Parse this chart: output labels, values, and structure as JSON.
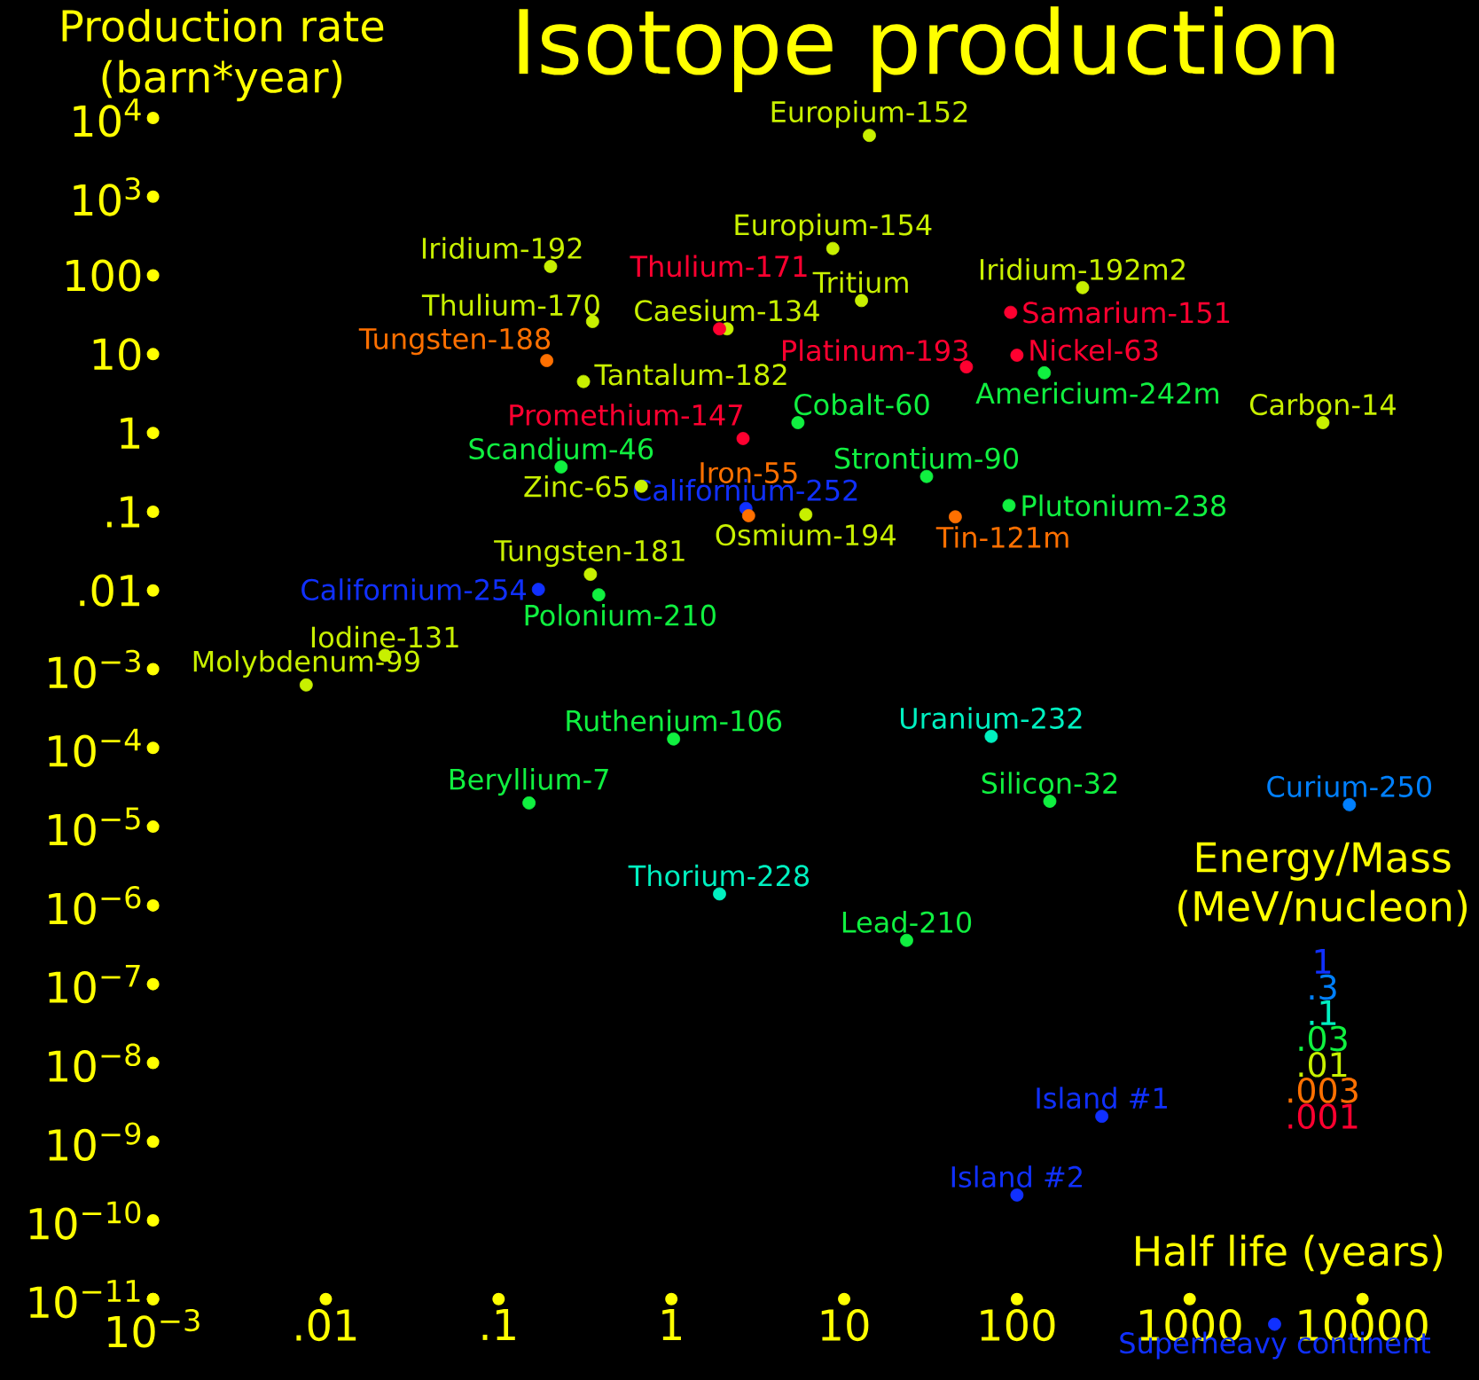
{
  "chart_data": {
    "type": "scatter",
    "title": "Isotope production",
    "xlabel": "Half life (years)",
    "ylabel": "Production rate (barn*year)",
    "legend_title": "Energy/Mass (MeV/nucleon)",
    "log": "xy",
    "marker": "circle",
    "legend": "bottom right",
    "xlim": [
      0.001,
      10000
    ],
    "ylim": [
      4.5e-12,
      10000
    ],
    "xticks": [
      {
        "value": 0.001,
        "label": "10$^{−3}$"
      },
      {
        "value": 0.01,
        "label": ".01"
      },
      {
        "value": 0.1,
        "label": ".1"
      },
      1,
      10,
      100,
      1000,
      10000
    ],
    "yticks": [
      {
        "value": 1e-11,
        "label": "10$^{−11}$"
      },
      {
        "value": 1e-10,
        "label": "10$^{−10}$"
      },
      {
        "value": 1e-09,
        "label": "10$^{−9}$"
      },
      {
        "value": 1e-08,
        "label": "10$^{−8}$"
      },
      {
        "value": 1e-07,
        "label": "10$^{−7}$"
      },
      {
        "value": 1e-06,
        "label": "10$^{−6}$"
      },
      {
        "value": 1e-05,
        "label": "10$^{−5}$"
      },
      {
        "value": 0.0001,
        "label": "10$^{−4}$"
      },
      {
        "value": 0.001,
        "label": "10$^{−3}$"
      },
      {
        "value": 0.01,
        "label": ".01"
      },
      {
        "value": 0.1,
        "label": ".1"
      },
      1,
      10,
      100,
      {
        "value": 1000,
        "label": "10$^{3}$"
      },
      {
        "value": 10000,
        "label": "10$^{4}$"
      }
    ],
    "series": [
      {
        "name": "1",
        "color": "#1030ff",
        "x": [
          0.17,
          2.7,
          310,
          100,
          3100
        ],
        "values": [
          0.0103,
          0.11,
          2.1e-09,
          2.1e-10,
          4.8e-12
        ]
      },
      {
        "name": ".3",
        "color": "#0080ff",
        "x": [
          8400
        ],
        "values": [
          1.9e-05
        ]
      },
      {
        "name": ".1",
        "color": "#00f0c0",
        "x": [
          71,
          1.9
        ],
        "values": [
          0.00014,
          1.4e-06
        ]
      },
      {
        "name": ".03",
        "color": "#10f040",
        "x": [
          0.23,
          5.4,
          144,
          30,
          90,
          0.38,
          1.03,
          0.15,
          155,
          23
        ],
        "values": [
          0.37,
          1.35,
          5.8,
          0.28,
          0.12,
          0.0088,
          0.00013,
          2e-05,
          2.1e-05,
          3.6e-07
        ]
      },
      {
        "name": ".01",
        "color": "#c8f000",
        "x": [
          14,
          8.6,
          2.1,
          0.31,
          0.67,
          6,
          0.34,
          0.0077,
          0.022,
          5900,
          0.2,
          240,
          12.6,
          0.35
        ],
        "values": [
          6000,
          220,
          21,
          4.5,
          0.21,
          0.092,
          0.016,
          0.00063,
          0.0015,
          1.35,
          130,
          70,
          48,
          26
        ]
      },
      {
        "name": ".003",
        "color": "#ff7000",
        "x": [
          2.8,
          44,
          0.19
        ],
        "values": [
          0.089,
          0.086,
          8.3
        ]
      },
      {
        "name": ".001",
        "color": "#ff0030",
        "x": [
          1.9,
          2.6,
          92,
          100,
          51
        ],
        "values": [
          21,
          0.85,
          34,
          9.7,
          6.9
        ]
      }
    ],
    "annotations": [
      {
        "text": "Californium-254",
        "x": 0.17,
        "y": 0.0103
      },
      {
        "text": "Californium-252",
        "x": 2.7,
        "y": 0.11
      },
      {
        "text": "Island #1",
        "x": 310,
        "y": 2.1e-09
      },
      {
        "text": "Island #2",
        "x": 100,
        "y": 2.1e-10
      },
      {
        "text": "Superheavy continent",
        "x": 3100,
        "y": 4.8e-12
      },
      {
        "text": "Curium-250",
        "x": 8400,
        "y": 1.9e-05
      },
      {
        "text": "Uranium-232",
        "x": 71,
        "y": 0.00014
      },
      {
        "text": "Thorium-228",
        "x": 1.9,
        "y": 1.4e-06
      },
      {
        "text": "Scandium-46",
        "x": 0.23,
        "y": 0.37
      },
      {
        "text": "Cobalt-60",
        "x": 5.4,
        "y": 1.35
      },
      {
        "text": "Americium-242m",
        "x": 144,
        "y": 5.8
      },
      {
        "text": "Strontium-90",
        "x": 30,
        "y": 0.28
      },
      {
        "text": "Plutonium-238",
        "x": 90,
        "y": 0.12
      },
      {
        "text": "Polonium-210",
        "x": 0.38,
        "y": 0.0088
      },
      {
        "text": "Ruthenium-106",
        "x": 1.03,
        "y": 0.00013
      },
      {
        "text": "Beryllium-7",
        "x": 0.15,
        "y": 2e-05
      },
      {
        "text": "Silicon-32",
        "x": 155,
        "y": 2.1e-05
      },
      {
        "text": "Lead-210",
        "x": 23,
        "y": 3.6e-07
      },
      {
        "text": "Europium-152",
        "x": 14,
        "y": 6000
      },
      {
        "text": "Europium-154",
        "x": 8.6,
        "y": 220
      },
      {
        "text": "Caesium-134",
        "x": 2.1,
        "y": 21
      },
      {
        "text": "Tantalum-182",
        "x": 0.31,
        "y": 4.5
      },
      {
        "text": "Zinc-65",
        "x": 0.67,
        "y": 0.21
      },
      {
        "text": "Osmium-194",
        "x": 6,
        "y": 0.092
      },
      {
        "text": "Tungsten-181",
        "x": 0.34,
        "y": 0.016
      },
      {
        "text": "Molybdenum-99",
        "x": 0.0077,
        "y": 0.00063
      },
      {
        "text": "Iodine-131",
        "x": 0.022,
        "y": 0.0015
      },
      {
        "text": "Carbon-14",
        "x": 5900,
        "y": 1.35
      },
      {
        "text": "Iridium-192",
        "x": 0.2,
        "y": 130
      },
      {
        "text": "Iridium-192m2",
        "x": 240,
        "y": 70
      },
      {
        "text": "Tritium",
        "x": 12.6,
        "y": 48
      },
      {
        "text": "Thulium-170",
        "x": 0.35,
        "y": 26
      },
      {
        "text": "Iron-55",
        "x": 2.8,
        "y": 0.089
      },
      {
        "text": "Tin-121m",
        "x": 44,
        "y": 0.086
      },
      {
        "text": "Tungsten-188",
        "x": 0.19,
        "y": 8.3
      },
      {
        "text": "Thulium-171",
        "x": 1.9,
        "y": 21
      },
      {
        "text": "Promethium-147",
        "x": 2.6,
        "y": 0.85
      },
      {
        "text": "Samarium-151",
        "x": 92,
        "y": 34
      },
      {
        "text": "Nickel-63",
        "x": 100,
        "y": 9.7
      },
      {
        "text": "Platinum-193",
        "x": 51,
        "y": 6.9
      }
    ]
  }
}
